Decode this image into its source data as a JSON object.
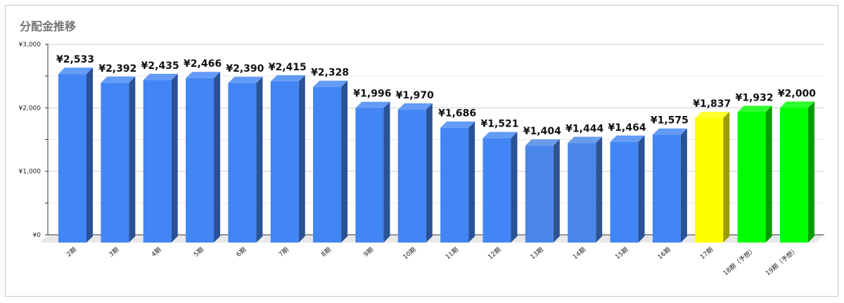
{
  "chart_data": {
    "type": "bar",
    "title": "分配金推移",
    "categories": [
      "2期",
      "3期",
      "4期",
      "5期",
      "6期",
      "7期",
      "8期",
      "9期",
      "10期",
      "11期",
      "12期",
      "13期",
      "14期",
      "15期",
      "16期",
      "17期",
      "18期（予想）",
      "19期（予想）"
    ],
    "values": [
      2533,
      2392,
      2435,
      2466,
      2390,
      2415,
      2328,
      1996,
      1970,
      1686,
      1521,
      1404,
      1444,
      1464,
      1575,
      1837,
      1932,
      2000
    ],
    "data_labels": [
      "¥2,533",
      "¥2,392",
      "¥2,435",
      "¥2,466",
      "¥2,390",
      "¥2,415",
      "¥2,328",
      "¥1,996",
      "¥1,970",
      "¥1,686",
      "¥1,521",
      "¥1,404",
      "¥1,444",
      "¥1,464",
      "¥1,575",
      "¥1,837",
      "¥1,932",
      "¥2,000"
    ],
    "bar_colors": [
      "#4285f4",
      "#4285f4",
      "#4285f4",
      "#4285f4",
      "#4285f4",
      "#4285f4",
      "#4285f4",
      "#4285f4",
      "#4285f4",
      "#4285f4",
      "#4285f4",
      "#4a86e8",
      "#4a86e8",
      "#4285f4",
      "#4285f4",
      "#ffff00",
      "#00ff00",
      "#00ff00"
    ],
    "y_ticks": [
      0,
      1000,
      2000,
      3000
    ],
    "y_tick_labels": [
      "¥0",
      "¥1,000",
      "¥2,000",
      "¥3,000"
    ],
    "ylim": [
      0,
      3000
    ],
    "xlabel": "",
    "ylabel": "",
    "grid": true,
    "legend": "none",
    "style": "3d"
  }
}
